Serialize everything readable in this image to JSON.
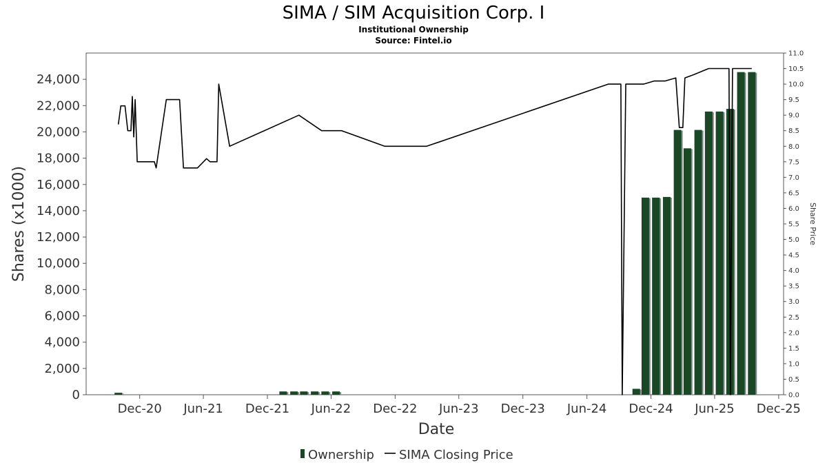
{
  "chart_data": {
    "type": "bar+line",
    "title": "SIMA / SIM Acquisition Corp. I",
    "subtitle_lines": [
      "Institutional Ownership",
      "Source: Fintel.io"
    ],
    "xlabel": "Date",
    "ylabel": "Shares (x1000)",
    "y2label": "Share Price",
    "ylim": [
      0,
      26000
    ],
    "y2lim": [
      0,
      11
    ],
    "xlim": [
      "2020-07-01",
      "2025-12-15"
    ],
    "yticks": [
      0,
      2000,
      4000,
      6000,
      8000,
      10000,
      12000,
      14000,
      16000,
      18000,
      20000,
      22000,
      24000
    ],
    "ytick_labels": [
      "0",
      "2,000",
      "4,000",
      "6,000",
      "8,000",
      "10,000",
      "12,000",
      "14,000",
      "16,000",
      "18,000",
      "20,000",
      "22,000",
      "24,000"
    ],
    "y2ticks": [
      0.0,
      0.5,
      1.0,
      1.5,
      2.0,
      2.5,
      3.0,
      3.5,
      4.0,
      4.5,
      5.0,
      5.5,
      6.0,
      6.5,
      7.0,
      7.5,
      8.0,
      8.5,
      9.0,
      9.5,
      10.0,
      10.5,
      11.0
    ],
    "y2tick_labels": [
      "0.0",
      "0.5",
      "1.0",
      "1.5",
      "2.0",
      "2.5",
      "3.0",
      "3.5",
      "4.0",
      "4.5",
      "5.0",
      "5.5",
      "6.0",
      "6.5",
      "7.0",
      "7.5",
      "8.0",
      "8.5",
      "9.0",
      "9.5",
      "10.0",
      "10.5",
      "11.0"
    ],
    "xticks": [
      "2020-12-01",
      "2021-06-01",
      "2021-12-01",
      "2022-06-01",
      "2022-12-01",
      "2023-06-01",
      "2023-12-01",
      "2024-06-01",
      "2024-12-01",
      "2025-06-01",
      "2025-12-01"
    ],
    "xtick_labels": [
      "Dec-20",
      "Jun-21",
      "Dec-21",
      "Jun-22",
      "Dec-22",
      "Jun-23",
      "Dec-23",
      "Jun-24",
      "Dec-24",
      "Jun-25",
      "Dec-25"
    ],
    "grid": false,
    "legend_position": "bottom-center",
    "colors": {
      "bar": "#1a4726",
      "bar_shadow": "#8a8a8a",
      "line": "#000000",
      "axis": "#555555"
    },
    "series": [
      {
        "name": "Ownership",
        "type": "bar",
        "axis": "left",
        "x": [
          "2020-10-01",
          "2022-01-15",
          "2022-02-15",
          "2022-03-15",
          "2022-04-15",
          "2022-05-15",
          "2022-06-15",
          "2024-10-20",
          "2024-11-15",
          "2024-12-15",
          "2025-01-15",
          "2025-02-15",
          "2025-03-15",
          "2025-04-15",
          "2025-05-15",
          "2025-06-15",
          "2025-07-15",
          "2025-08-15",
          "2025-09-15"
        ],
        "values": [
          150,
          250,
          250,
          250,
          250,
          250,
          250,
          450,
          15000,
          15000,
          15050,
          20150,
          18750,
          20150,
          21550,
          21550,
          21750,
          24550,
          24550
        ]
      },
      {
        "name": "SIMA Closing Price",
        "type": "line",
        "axis": "right",
        "x": [
          "2020-10-01",
          "2020-10-08",
          "2020-10-20",
          "2020-10-28",
          "2020-11-06",
          "2020-11-10",
          "2020-11-14",
          "2020-11-18",
          "2020-11-24",
          "2020-12-01",
          "2021-01-05",
          "2021-01-12",
          "2021-01-17",
          "2021-02-15",
          "2021-02-22",
          "2021-03-25",
          "2021-04-05",
          "2021-04-12",
          "2021-04-25",
          "2021-05-15",
          "2021-06-10",
          "2021-06-20",
          "2021-06-28",
          "2021-07-10",
          "2021-07-15",
          "2021-08-15",
          "2022-03-01",
          "2022-05-05",
          "2022-07-01",
          "2022-11-01",
          "2023-03-01",
          "2024-08-01",
          "2024-08-15",
          "2024-09-06",
          "2024-09-10",
          "2024-09-20",
          "2024-10-10",
          "2024-11-10",
          "2024-12-10",
          "2025-01-10",
          "2025-02-10",
          "2025-02-20",
          "2025-03-02",
          "2025-03-08",
          "2025-04-01",
          "2025-05-15",
          "2025-06-15",
          "2025-07-12",
          "2025-07-16",
          "2025-07-22",
          "2025-08-15",
          "2025-09-15"
        ],
        "values": [
          8.7,
          9.3,
          9.3,
          8.5,
          8.5,
          9.6,
          8.3,
          9.5,
          7.5,
          7.5,
          7.5,
          7.5,
          7.3,
          9.5,
          9.5,
          9.5,
          7.3,
          7.3,
          7.3,
          7.3,
          7.6,
          7.5,
          7.5,
          7.5,
          10.0,
          8.0,
          9.0,
          8.5,
          8.5,
          8.0,
          8.0,
          10.0,
          10.0,
          10.0,
          0.0,
          10.0,
          10.0,
          10.0,
          10.1,
          10.1,
          10.2,
          8.6,
          8.6,
          10.2,
          10.3,
          10.5,
          10.5,
          10.5,
          0.0,
          10.5,
          10.5,
          10.5
        ]
      }
    ]
  }
}
